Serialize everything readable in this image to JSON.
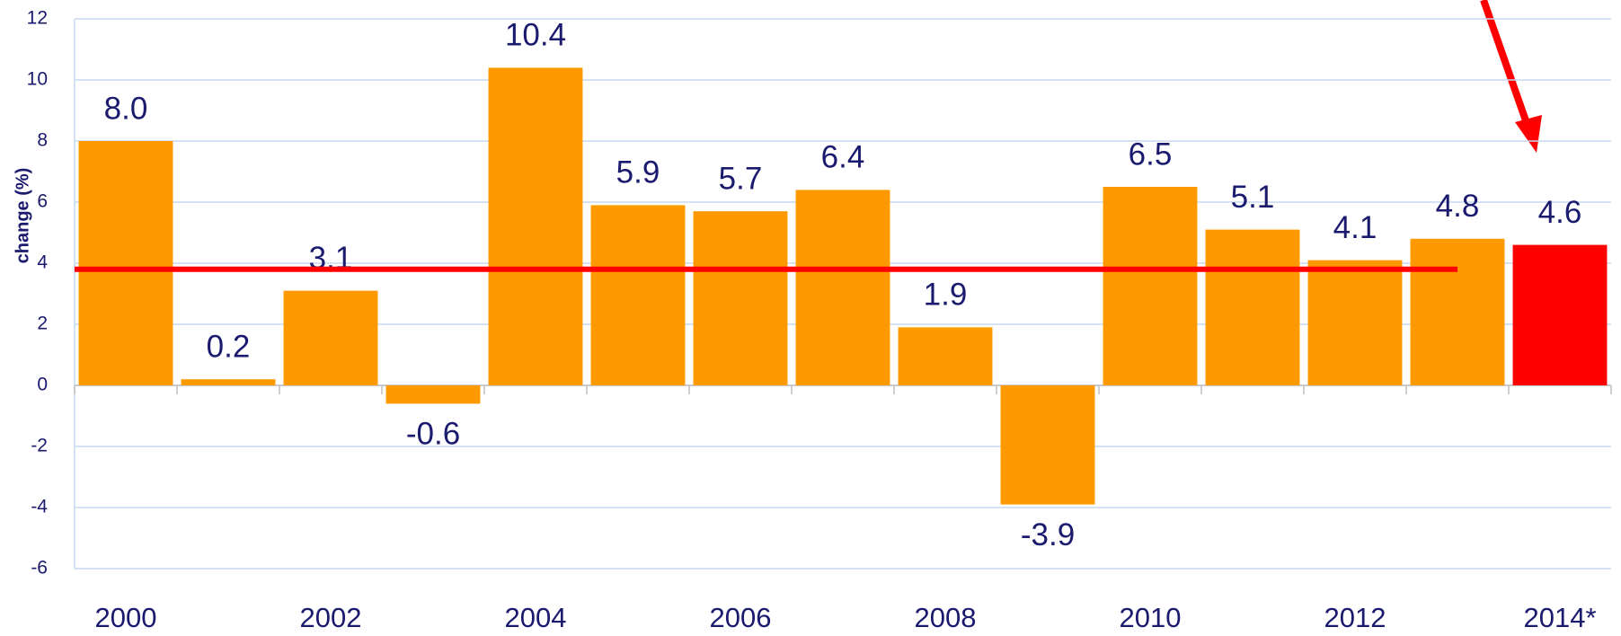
{
  "chart_data": {
    "type": "bar",
    "y_label": "change (%)",
    "categories": [
      "2000",
      null,
      "2002",
      null,
      "2004",
      null,
      "2006",
      null,
      "2008",
      null,
      "2010",
      null,
      "2012",
      null,
      "2014*"
    ],
    "values": [
      8.0,
      0.2,
      3.1,
      -0.6,
      10.4,
      5.9,
      5.7,
      6.4,
      1.9,
      -3.9,
      6.5,
      5.1,
      4.1,
      4.8,
      4.6
    ],
    "value_labels": [
      "8.0",
      "0.2",
      "3.1",
      "-0.6",
      "10.4",
      "5.9",
      "5.7",
      "6.4",
      "1.9",
      "-3.9",
      "6.5",
      "5.1",
      "4.1",
      "4.8",
      "4.6"
    ],
    "colors": [
      "#ff9900",
      "#ff9900",
      "#ff9900",
      "#ff9900",
      "#ff9900",
      "#ff9900",
      "#ff9900",
      "#ff9900",
      "#ff9900",
      "#ff9900",
      "#ff9900",
      "#ff9900",
      "#ff9900",
      "#ff9900",
      "#ff0000"
    ],
    "reference_line": {
      "value": 3.8,
      "color": "#ff0000"
    },
    "ylim": [
      -6,
      12
    ],
    "yticks": [
      -6,
      -4,
      -2,
      0,
      2,
      4,
      6,
      8,
      10,
      12
    ],
    "grid": true
  }
}
